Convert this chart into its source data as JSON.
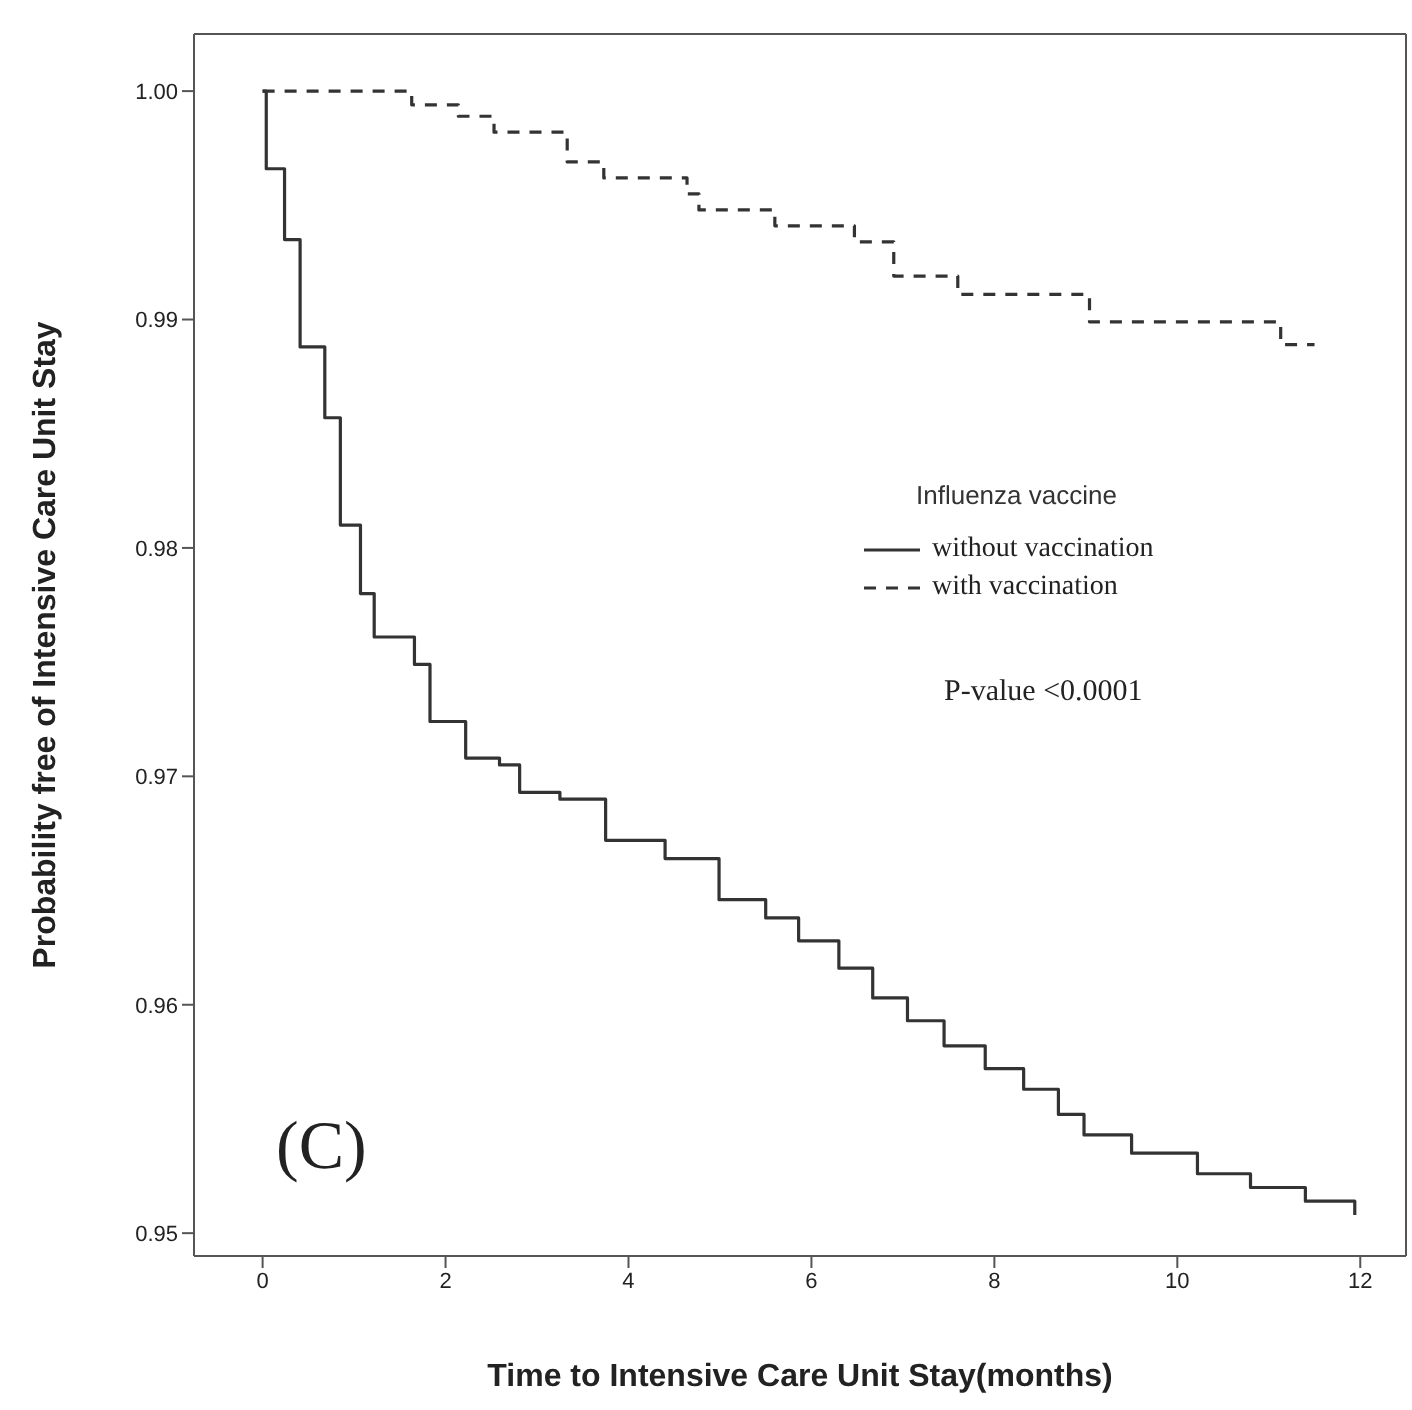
{
  "chart_data": {
    "type": "step",
    "xlabel": "Time to Intensive Care Unit Stay(months)",
    "ylabel": "Probability free of Intensive Care Unit Stay",
    "legend_title": "Influenza vaccine",
    "legend": "right",
    "marker": "none",
    "xlim": [
      -0.75,
      12.5
    ],
    "xticks": [
      0,
      2,
      4,
      6,
      8,
      10,
      12
    ],
    "ylim": [
      0.949,
      1.0025
    ],
    "yticks": [
      {
        "value": 0.95,
        "label": "0.95"
      },
      {
        "value": 0.96,
        "label": "0.96"
      },
      {
        "value": 0.97,
        "label": "0.97"
      },
      {
        "value": 0.98,
        "label": "0.98"
      },
      {
        "value": 0.99,
        "label": "0.99"
      },
      {
        "value": 1,
        "label": "1.00"
      }
    ],
    "annotations": [
      "P-value <0.0001",
      "(C)"
    ],
    "series": [
      {
        "name": "without vaccination",
        "color": "#333333",
        "line_style": "solid",
        "x": [
          0,
          0.04,
          0.24,
          0.41,
          0.68,
          0.85,
          1.07,
          1.22,
          1.66,
          1.83,
          2.22,
          2.59,
          2.81,
          3.25,
          3.75,
          4.4,
          4.99,
          5.5,
          5.86,
          6.3,
          6.67,
          7.05,
          7.45,
          7.9,
          8.32,
          8.7,
          8.98,
          9.5,
          10.22,
          10.8,
          11.4,
          11.94
        ],
        "values": [
          1,
          0.9966,
          0.9935,
          0.9888,
          0.9857,
          0.981,
          0.978,
          0.9761,
          0.9749,
          0.9724,
          0.9708,
          0.9705,
          0.9693,
          0.969,
          0.9672,
          0.9664,
          0.9646,
          0.9638,
          0.9628,
          0.9616,
          0.9603,
          0.9593,
          0.9582,
          0.9572,
          0.9563,
          0.9552,
          0.9543,
          0.9535,
          0.9526,
          0.952,
          0.9514,
          0.9508
        ]
      },
      {
        "name": "with vaccination",
        "color": "#333333",
        "line_style": "dashed",
        "x": [
          0,
          1.63,
          2.14,
          2.53,
          3.33,
          3.73,
          4.64,
          4.77,
          5.6,
          6.47,
          6.9,
          7.6,
          9.04,
          11.13,
          11.5
        ],
        "values": [
          1,
          0.9994,
          0.9989,
          0.9982,
          0.9969,
          0.9962,
          0.9955,
          0.9948,
          0.9941,
          0.9934,
          0.9919,
          0.9911,
          0.9899,
          0.9889,
          0.9889
        ]
      }
    ]
  }
}
